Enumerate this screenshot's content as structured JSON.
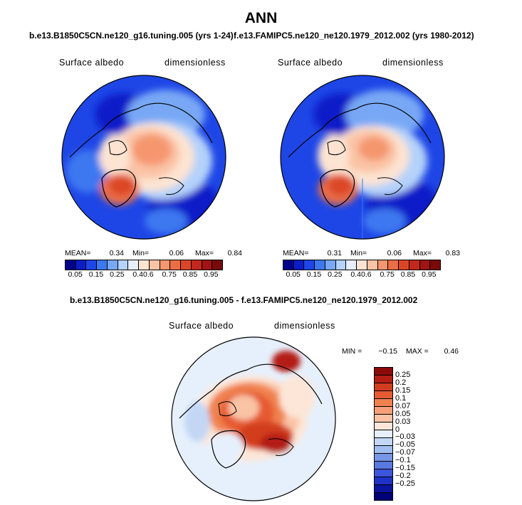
{
  "figure": {
    "title": "ANN",
    "case1_title": "b.e13.B1850C5CN.ne120_g16.tuning.005 (yrs 1-24)",
    "case2_title": "f.e13.FAMIPC5.ne120_ne120.1979_2012.002 (yrs 1980-2012)",
    "diff_title": "b.e13.B1850C5CN.ne120_g16.tuning.005 - f.e13.FAMIPC5.ne120_ne120.1979_2012.002"
  },
  "panels": {
    "left": {
      "variable": "Surface albedo",
      "units": "dimensionless",
      "mean_label": "MEAN=",
      "mean": "0.34",
      "min_label": "Min=",
      "min": "0.06",
      "max_label": "Max=",
      "max": "0.84"
    },
    "right": {
      "variable": "Surface albedo",
      "units": "dimensionless",
      "mean_label": "MEAN=",
      "mean": "0.31",
      "min_label": "Min=",
      "min": "0.06",
      "max_label": "Max=",
      "max": "0.83"
    },
    "diff": {
      "variable": "Surface albedo",
      "units": "dimensionless",
      "min_label": "MIN =",
      "min": "−0.15",
      "max_label": "MAX =",
      "max": "0.46"
    }
  },
  "colorbar_abs": {
    "colors": [
      "#00008c",
      "#0a1ec8",
      "#1e46e6",
      "#3c78f0",
      "#78a8f5",
      "#b4d2fa",
      "#e6eefc",
      "#fde4d2",
      "#fac3a5",
      "#f5966e",
      "#eb6e46",
      "#dc4628",
      "#c3281e",
      "#a01414",
      "#780a0a"
    ],
    "ticks": [
      "0.05",
      "0.15",
      "0.25",
      "0.4",
      "0.6",
      "0.75",
      "0.85",
      "0.95"
    ]
  },
  "colorbar_diff": {
    "colors_top_to_bottom": [
      "#8c0a0a",
      "#b41e14",
      "#d23c1e",
      "#e65a32",
      "#f08250",
      "#f5a078",
      "#fac3a5",
      "#fde6d7",
      "#e6f0fc",
      "#c3d7f5",
      "#a0beef",
      "#7896e6",
      "#5a78e1",
      "#3c55dc",
      "#1e32c8",
      "#0a14a0",
      "#000078"
    ],
    "ticks": [
      "0.25",
      "0.2",
      "0.15",
      "0.1",
      "0.07",
      "0.05",
      "0.03",
      "0",
      "−0.03",
      "−0.05",
      "−0.07",
      "−0.1",
      "−0.15",
      "−0.2",
      "−0.25"
    ]
  }
}
